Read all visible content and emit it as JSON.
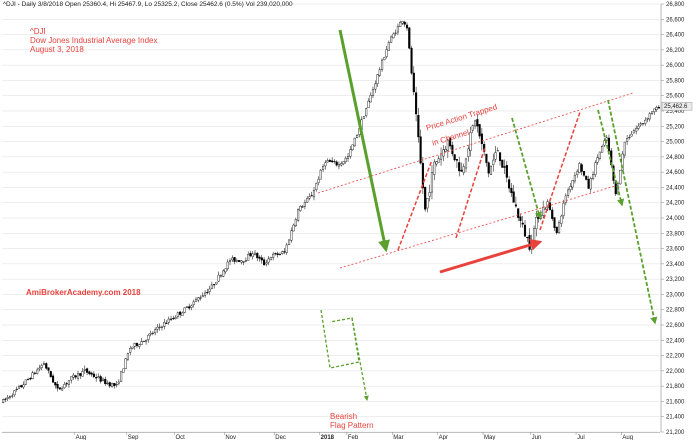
{
  "header": {
    "info": "^DJI - Daily 3/8/2018 Open 25360.4, Hi 25467.9, Lo 25325.2, Close 25462.6 (0.5%) Vol 239,020,000"
  },
  "annotations": {
    "title_line1": "^DJI",
    "title_line2": "Dow Jones Industrial Average Index",
    "title_line3": "August 3, 2018",
    "channel_line1": "Price Action Trapped",
    "channel_line2": "in Channel",
    "watermark": "AmiBrokerAcademy.com  2018",
    "pattern_line1": "Bearish",
    "pattern_line2": "Flag Pattern"
  },
  "colors": {
    "candle": "#000000",
    "bearish_arrow": "#5aa02c",
    "bullish_arrow": "#e8423d",
    "channel": "#e8423d",
    "grid": "#dddddd",
    "last_price_badge": "#ebebeb"
  },
  "chart_data": {
    "type": "candlestick",
    "title": "^DJI",
    "subtitle": "Dow Jones Industrial Average Index",
    "ylim": [
      21200,
      26800
    ],
    "y_ticks": [
      21200,
      21400,
      21600,
      21800,
      22000,
      22200,
      22400,
      22600,
      22800,
      23000,
      23200,
      23400,
      23600,
      23800,
      24000,
      24200,
      24400,
      24600,
      24800,
      25000,
      25200,
      25400,
      25600,
      25800,
      26000,
      26200,
      26400,
      26600,
      26800
    ],
    "x_tick_labels": [
      "Aug",
      "Sep",
      "Oct",
      "Nov",
      "Dec",
      "2018",
      "Feb",
      "Mar",
      "Apr",
      "May",
      "Jun",
      "Jul",
      "Aug"
    ],
    "x_tick_positions": [
      32,
      55,
      76,
      98,
      120,
      140,
      152,
      172,
      192,
      212,
      233,
      253,
      273
    ],
    "bar_count": 290,
    "last_price_label": "25,462.6",
    "last_price": 25462.6,
    "grid": true,
    "segments": [
      [
        0,
        21600
      ],
      [
        8,
        21800
      ],
      [
        18,
        22100
      ],
      [
        24,
        21750
      ],
      [
        30,
        21900
      ],
      [
        36,
        22000
      ],
      [
        45,
        21850
      ],
      [
        50,
        21800
      ],
      [
        56,
        22300
      ],
      [
        62,
        22400
      ],
      [
        70,
        22600
      ],
      [
        80,
        22800
      ],
      [
        92,
        23100
      ],
      [
        100,
        23450
      ],
      [
        106,
        23450
      ],
      [
        110,
        23550
      ],
      [
        115,
        23400
      ],
      [
        118,
        23500
      ],
      [
        124,
        23550
      ],
      [
        130,
        24100
      ],
      [
        136,
        24300
      ],
      [
        142,
        24750
      ],
      [
        148,
        24700
      ],
      [
        152,
        24800
      ],
      [
        156,
        25100
      ],
      [
        162,
        25600
      ],
      [
        170,
        26300
      ],
      [
        176,
        26600
      ],
      [
        178,
        26500
      ],
      [
        180,
        25900
      ],
      [
        184,
        24700
      ],
      [
        186,
        24100
      ],
      [
        190,
        24700
      ],
      [
        196,
        25000
      ],
      [
        202,
        24600
      ],
      [
        208,
        25300
      ],
      [
        214,
        24600
      ],
      [
        218,
        24900
      ],
      [
        222,
        24500
      ],
      [
        228,
        23950
      ],
      [
        232,
        23650
      ],
      [
        236,
        24050
      ],
      [
        240,
        24200
      ],
      [
        244,
        23800
      ],
      [
        248,
        24300
      ],
      [
        254,
        24700
      ],
      [
        258,
        24400
      ],
      [
        262,
        24800
      ],
      [
        266,
        25050
      ],
      [
        270,
        24300
      ],
      [
        274,
        25000
      ],
      [
        278,
        25150
      ],
      [
        282,
        25250
      ],
      [
        286,
        25400
      ],
      [
        290,
        25450
      ]
    ]
  }
}
